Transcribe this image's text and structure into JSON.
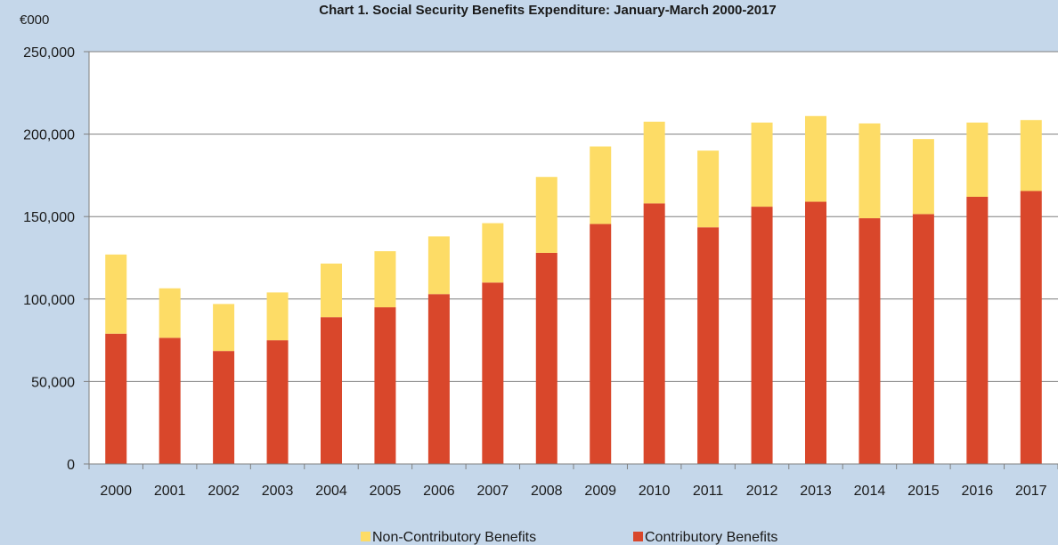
{
  "chart_data": {
    "type": "bar",
    "stacked": true,
    "title": "Chart 1. Social Security Benefits Expenditure: January-March 2000-2017",
    "y_unit_label": "€000",
    "xlabel": "",
    "ylabel": "",
    "ylim": [
      0,
      250000
    ],
    "yticks": [
      0,
      50000,
      100000,
      150000,
      200000,
      250000
    ],
    "ytick_labels": [
      "0",
      "50,000",
      "100,000",
      "150,000",
      "200,000",
      "250,000"
    ],
    "grid": true,
    "legend_position": "bottom",
    "categories": [
      "2000",
      "2001",
      "2002",
      "2003",
      "2004",
      "2005",
      "2006",
      "2007",
      "2008",
      "2009",
      "2010",
      "2011",
      "2012",
      "2013",
      "2014",
      "2015",
      "2016",
      "2017"
    ],
    "series": [
      {
        "name": "Contributory Benefits",
        "color": "#d9472b",
        "values": [
          79000,
          76500,
          68500,
          75000,
          89000,
          95000,
          103000,
          110000,
          128000,
          145500,
          158000,
          143500,
          156000,
          159000,
          149000,
          151500,
          162000,
          165500
        ]
      },
      {
        "name": "Non-Contributory Benefits",
        "color": "#fddc66",
        "values": [
          48000,
          30000,
          28500,
          29000,
          32500,
          34000,
          35000,
          36000,
          46000,
          47000,
          49500,
          46500,
          51000,
          52000,
          57500,
          45500,
          45000,
          43000
        ]
      }
    ],
    "legend": [
      {
        "name": "Non-Contributory Benefits",
        "color": "#fddc66"
      },
      {
        "name": "Contributory Benefits",
        "color": "#d9472b"
      }
    ]
  }
}
